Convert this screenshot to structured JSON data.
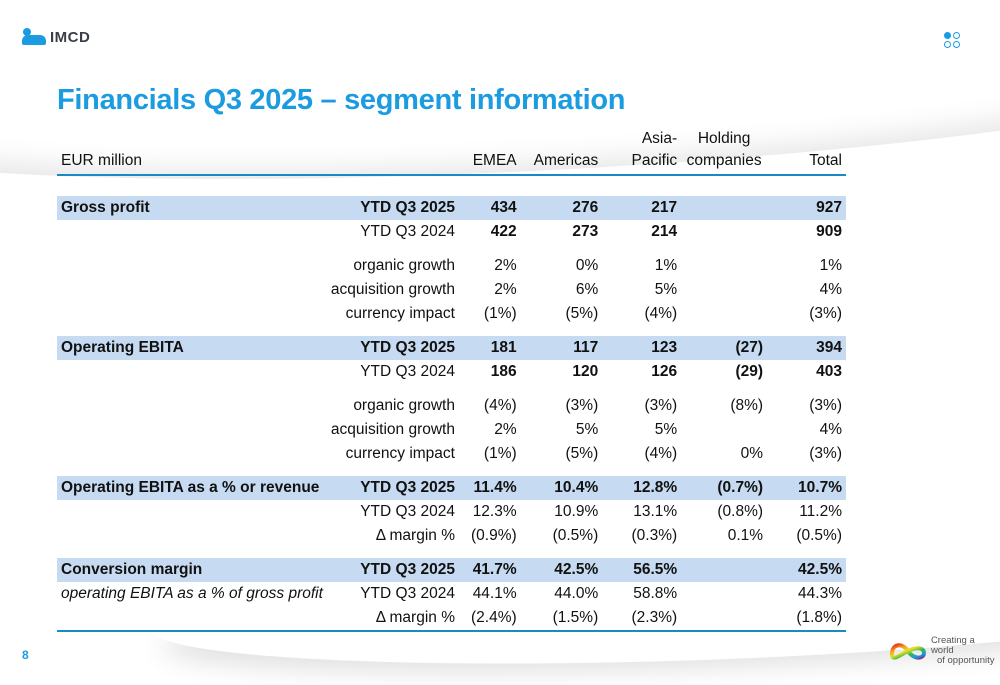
{
  "header": {
    "logo_text": "IMCD",
    "title": "Financials Q3 2025 – segment information",
    "nav_icon": "four-dots-icon"
  },
  "table": {
    "unit_label": "EUR million",
    "columns": [
      {
        "line1": "",
        "line2": "EMEA"
      },
      {
        "line1": "",
        "line2": "Americas"
      },
      {
        "line1": "Asia-",
        "line2": "Pacific"
      },
      {
        "line1": "Holding",
        "line2": "companies"
      },
      {
        "line1": "",
        "line2": "Total"
      }
    ],
    "sections": [
      {
        "name": "Gross profit",
        "subtitle": "",
        "rows": [
          {
            "label": "YTD Q3 2025",
            "values": [
              "434",
              "276",
              "217",
              "",
              "927"
            ]
          },
          {
            "label": "YTD Q3 2024",
            "values": [
              "422",
              "273",
              "214",
              "",
              "909"
            ]
          },
          {
            "label": "organic growth",
            "values": [
              "2%",
              "0%",
              "1%",
              "",
              "1%"
            ]
          },
          {
            "label": "acquisition growth",
            "values": [
              "2%",
              "6%",
              "5%",
              "",
              "4%"
            ]
          },
          {
            "label": "currency impact",
            "values": [
              "(1%)",
              "(5%)",
              "(4%)",
              "",
              "(3%)"
            ]
          }
        ]
      },
      {
        "name": "Operating EBITA",
        "subtitle": "",
        "rows": [
          {
            "label": "YTD Q3 2025",
            "values": [
              "181",
              "117",
              "123",
              "(27)",
              "394"
            ]
          },
          {
            "label": "YTD Q3 2024",
            "values": [
              "186",
              "120",
              "126",
              "(29)",
              "403"
            ]
          },
          {
            "label": "organic growth",
            "values": [
              "(4%)",
              "(3%)",
              "(3%)",
              "(8%)",
              "(3%)"
            ]
          },
          {
            "label": "acquisition growth",
            "values": [
              "2%",
              "5%",
              "5%",
              "",
              "4%"
            ]
          },
          {
            "label": "currency impact",
            "values": [
              "(1%)",
              "(5%)",
              "(4%)",
              "0%",
              "(3%)"
            ]
          }
        ]
      },
      {
        "name": "Operating EBITA as a % or revenue",
        "subtitle": "",
        "rows": [
          {
            "label": "YTD Q3 2025",
            "values": [
              "11.4%",
              "10.4%",
              "12.8%",
              "(0.7%)",
              "10.7%"
            ]
          },
          {
            "label": "YTD Q3 2024",
            "values": [
              "12.3%",
              "10.9%",
              "13.1%",
              "(0.8%)",
              "11.2%"
            ]
          },
          {
            "label": "Δ  margin %",
            "values": [
              "(0.9%)",
              "(0.5%)",
              "(0.3%)",
              "0.1%",
              "(0.5%)"
            ]
          }
        ]
      },
      {
        "name": "Conversion margin",
        "subtitle": "operating EBITA as a % of gross profit",
        "rows": [
          {
            "label": "YTD Q3 2025",
            "values": [
              "41.7%",
              "42.5%",
              "56.5%",
              "",
              "42.5%"
            ]
          },
          {
            "label": "YTD Q3 2024",
            "values": [
              "44.1%",
              "44.0%",
              "58.8%",
              "",
              "44.3%"
            ]
          },
          {
            "label": "Δ  margin %",
            "values": [
              "(2.4%)",
              "(1.5%)",
              "(2.3%)",
              "",
              "(1.8%)"
            ]
          }
        ]
      }
    ]
  },
  "footer": {
    "page_number": "8",
    "tagline_line1": "Creating a world",
    "tagline_line2": "of opportunity"
  },
  "colors": {
    "brand_blue": "#1b9be0",
    "highlight_row": "#c6dbf1",
    "rule": "#1b88c8"
  }
}
